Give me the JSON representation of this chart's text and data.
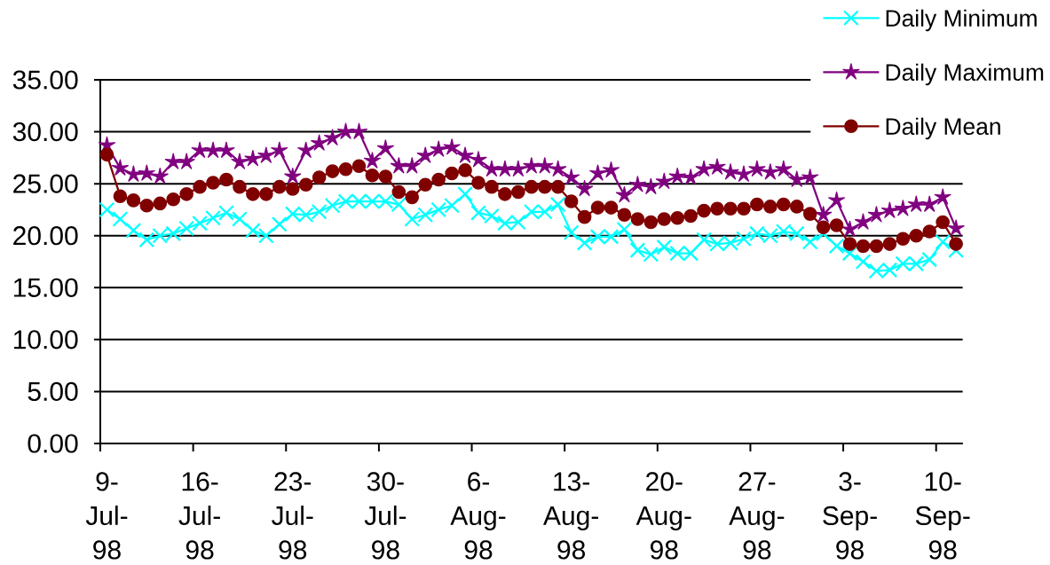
{
  "chart_data": {
    "type": "line",
    "categories": [
      "9-Jul-98",
      null,
      null,
      null,
      null,
      null,
      null,
      "16-Jul-98",
      null,
      null,
      null,
      null,
      null,
      null,
      "23-Jul-98",
      null,
      null,
      null,
      null,
      null,
      null,
      "30-Jul-98",
      null,
      null,
      null,
      null,
      null,
      null,
      "6-Aug-98",
      null,
      null,
      null,
      null,
      null,
      null,
      "13-Aug-98",
      null,
      null,
      null,
      null,
      null,
      null,
      "20-Aug-98",
      null,
      null,
      null,
      null,
      null,
      null,
      "27-Aug-98",
      null,
      null,
      null,
      null,
      null,
      null,
      "3-Sep-98",
      null,
      null,
      null,
      null,
      null,
      null,
      "10-Sep-98",
      null
    ],
    "series": [
      {
        "name": "Daily Minimum",
        "color": "#00ffff",
        "marker": "cross",
        "values": [
          22.5,
          21.6,
          20.5,
          19.6,
          20.0,
          20.2,
          20.7,
          21.2,
          21.7,
          22.2,
          21.6,
          20.5,
          20.0,
          21.1,
          22.1,
          22.0,
          22.3,
          22.9,
          23.3,
          23.3,
          23.3,
          23.3,
          23.0,
          21.6,
          22.0,
          22.5,
          22.9,
          24.0,
          22.2,
          21.9,
          21.2,
          21.3,
          22.3,
          22.3,
          23.0,
          20.3,
          19.3,
          19.9,
          19.9,
          20.6,
          18.6,
          18.2,
          18.9,
          18.3,
          18.3,
          19.6,
          19.2,
          19.3,
          19.7,
          20.2,
          20.0,
          20.4,
          20.2,
          19.4,
          20.2,
          19.0,
          18.3,
          17.5,
          16.6,
          16.7,
          17.3,
          17.3,
          17.7,
          19.4,
          18.6
        ]
      },
      {
        "name": "Daily Maximum",
        "color": "#800080",
        "marker": "star",
        "values": [
          28.7,
          26.5,
          25.9,
          26.0,
          25.7,
          27.1,
          27.1,
          28.2,
          28.2,
          28.2,
          27.1,
          27.4,
          27.7,
          28.2,
          25.7,
          28.2,
          28.9,
          29.4,
          30.0,
          30.0,
          27.2,
          28.4,
          26.7,
          26.7,
          27.7,
          28.3,
          28.5,
          27.7,
          27.3,
          26.4,
          26.4,
          26.4,
          26.7,
          26.7,
          26.4,
          25.6,
          24.5,
          26.0,
          26.3,
          23.9,
          24.9,
          24.7,
          25.2,
          25.7,
          25.6,
          26.4,
          26.6,
          26.1,
          25.9,
          26.4,
          26.1,
          26.4,
          25.4,
          25.6,
          22.0,
          23.4,
          20.6,
          21.3,
          22.0,
          22.4,
          22.6,
          23.0,
          23.0,
          23.7,
          20.7
        ]
      },
      {
        "name": "Daily Mean",
        "color": "#800000",
        "marker": "circle",
        "values": [
          27.8,
          23.8,
          23.4,
          22.9,
          23.1,
          23.5,
          24.0,
          24.7,
          25.1,
          25.4,
          24.7,
          24.0,
          24.0,
          24.7,
          24.5,
          24.9,
          25.6,
          26.2,
          26.4,
          26.7,
          25.8,
          25.7,
          24.2,
          23.7,
          24.9,
          25.4,
          26.0,
          26.3,
          25.1,
          24.7,
          24.0,
          24.2,
          24.7,
          24.7,
          24.7,
          23.3,
          21.8,
          22.7,
          22.7,
          22.0,
          21.6,
          21.3,
          21.6,
          21.7,
          21.9,
          22.4,
          22.6,
          22.6,
          22.6,
          23.0,
          22.8,
          23.0,
          22.8,
          22.1,
          20.8,
          21.0,
          19.2,
          19.0,
          19.0,
          19.2,
          19.7,
          20.0,
          20.4,
          21.3,
          19.2
        ]
      }
    ],
    "ylim": [
      0,
      35
    ],
    "yticks": [
      {
        "value": 0,
        "label": "0.00"
      },
      {
        "value": 5,
        "label": "5.00"
      },
      {
        "value": 10,
        "label": "10.00"
      },
      {
        "value": 15,
        "label": "15.00"
      },
      {
        "value": 20,
        "label": "20.00"
      },
      {
        "value": 25,
        "label": "25.00"
      },
      {
        "value": 30,
        "label": "30.00"
      },
      {
        "value": 35,
        "label": "35.00"
      }
    ],
    "grid": "y",
    "legend": "top right"
  }
}
